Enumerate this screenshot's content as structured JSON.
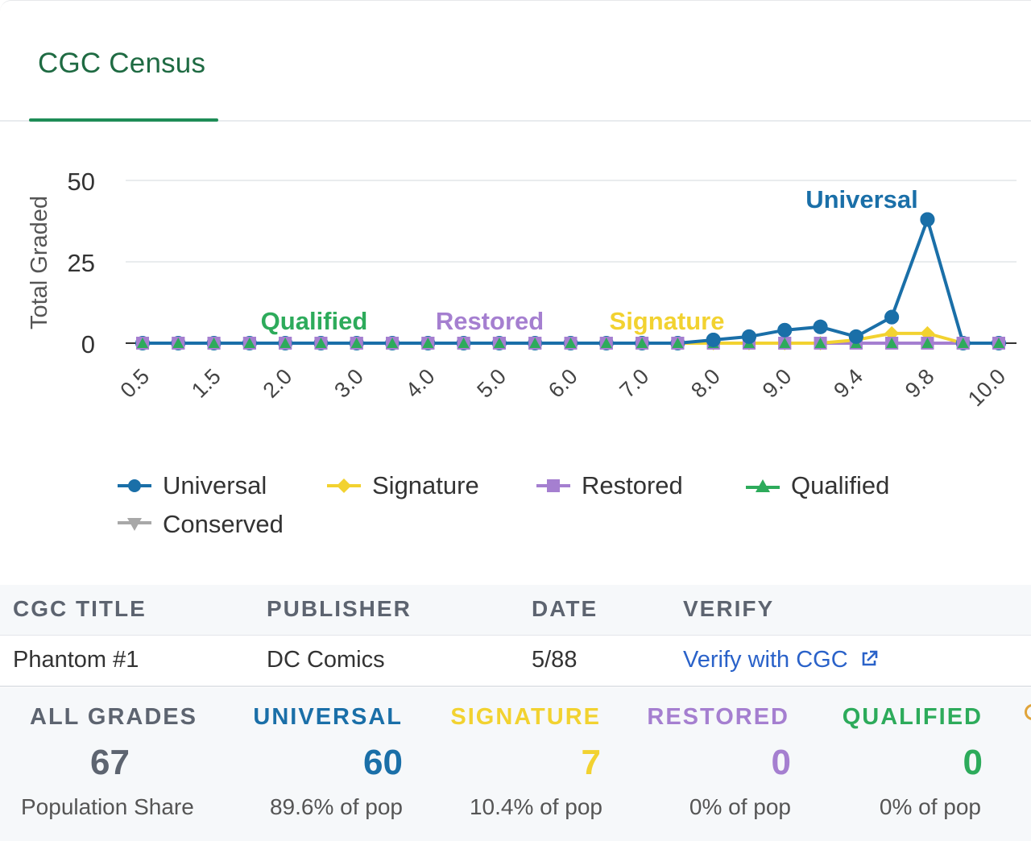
{
  "tab": {
    "label": "CGC Census"
  },
  "chart_data": {
    "type": "line",
    "ylabel": "Total Graded",
    "xlabel": "",
    "ylim": [
      0,
      50
    ],
    "yticks": [
      0,
      25,
      50
    ],
    "grid": true,
    "legend_position": "bottom",
    "x": [
      0.5,
      1.0,
      1.5,
      1.8,
      2.0,
      2.5,
      3.0,
      3.5,
      4.0,
      4.5,
      5.0,
      5.5,
      6.0,
      6.5,
      7.0,
      7.5,
      8.0,
      8.5,
      9.0,
      9.2,
      9.4,
      9.6,
      9.8,
      9.9,
      10.0
    ],
    "xtick_labels": [
      "0.5",
      "1.5",
      "2.0",
      "3.0",
      "4.0",
      "5.0",
      "6.0",
      "7.0",
      "8.0",
      "9.0",
      "9.4",
      "9.8",
      "10.0"
    ],
    "series": [
      {
        "name": "Universal",
        "color": "#1a6fa8",
        "marker": "circle",
        "values": [
          0,
          0,
          0,
          0,
          0,
          0,
          0,
          0,
          0,
          0,
          0,
          0,
          0,
          0,
          0,
          0,
          1,
          2,
          4,
          5,
          2,
          8,
          38,
          0,
          0
        ]
      },
      {
        "name": "Signature",
        "color": "#f2d230",
        "marker": "diamond",
        "values": [
          0,
          0,
          0,
          0,
          0,
          0,
          0,
          0,
          0,
          0,
          0,
          0,
          0,
          0,
          0,
          0,
          0,
          0,
          0,
          0,
          1,
          3,
          3,
          0,
          0
        ]
      },
      {
        "name": "Restored",
        "color": "#a57fd0",
        "marker": "square",
        "values": [
          0,
          0,
          0,
          0,
          0,
          0,
          0,
          0,
          0,
          0,
          0,
          0,
          0,
          0,
          0,
          0,
          0,
          0,
          0,
          0,
          0,
          0,
          0,
          0,
          0
        ]
      },
      {
        "name": "Qualified",
        "color": "#2dab5b",
        "marker": "triangle",
        "values": [
          0,
          0,
          0,
          0,
          0,
          0,
          0,
          0,
          0,
          0,
          0,
          0,
          0,
          0,
          0,
          0,
          0,
          0,
          0,
          0,
          0,
          0,
          0,
          0,
          0
        ]
      },
      {
        "name": "Conserved",
        "color": "#a8a8a8",
        "marker": "triangle-down",
        "values": [
          0,
          0,
          0,
          0,
          0,
          0,
          0,
          0,
          0,
          0,
          0,
          0,
          0,
          0,
          0,
          0,
          0,
          0,
          0,
          0,
          0,
          0,
          0,
          0,
          0
        ]
      }
    ],
    "annotations": [
      {
        "text": "Qualified",
        "color": "#2dab5b"
      },
      {
        "text": "Restored",
        "color": "#a57fd0"
      },
      {
        "text": "Signature",
        "color": "#f2d230"
      },
      {
        "text": "Universal",
        "color": "#1a6fa8"
      }
    ]
  },
  "info_table": {
    "headers": {
      "title": "CGC TITLE",
      "publisher": "PUBLISHER",
      "date": "DATE",
      "verify": "VERIFY"
    },
    "row": {
      "title": "Phantom #1",
      "publisher": "DC Comics",
      "date": "5/88",
      "verify": "Verify with CGC",
      "verify_icon": "external-link-icon"
    }
  },
  "stats": [
    {
      "key": "all",
      "label": "ALL GRADES",
      "count": "67",
      "sub": "Population Share",
      "color": "#5d6470"
    },
    {
      "key": "universal",
      "label": "UNIVERSAL",
      "count": "60",
      "sub": "89.6% of pop",
      "color": "#1a6fa8"
    },
    {
      "key": "signature",
      "label": "SIGNATURE",
      "count": "7",
      "sub": "10.4% of pop",
      "color": "#f2d230"
    },
    {
      "key": "restored",
      "label": "RESTORED",
      "count": "0",
      "sub": "0% of pop",
      "color": "#a57fd0"
    },
    {
      "key": "qualified",
      "label": "QUALIFIED",
      "count": "0",
      "sub": "0% of pop",
      "color": "#2dab5b"
    }
  ]
}
